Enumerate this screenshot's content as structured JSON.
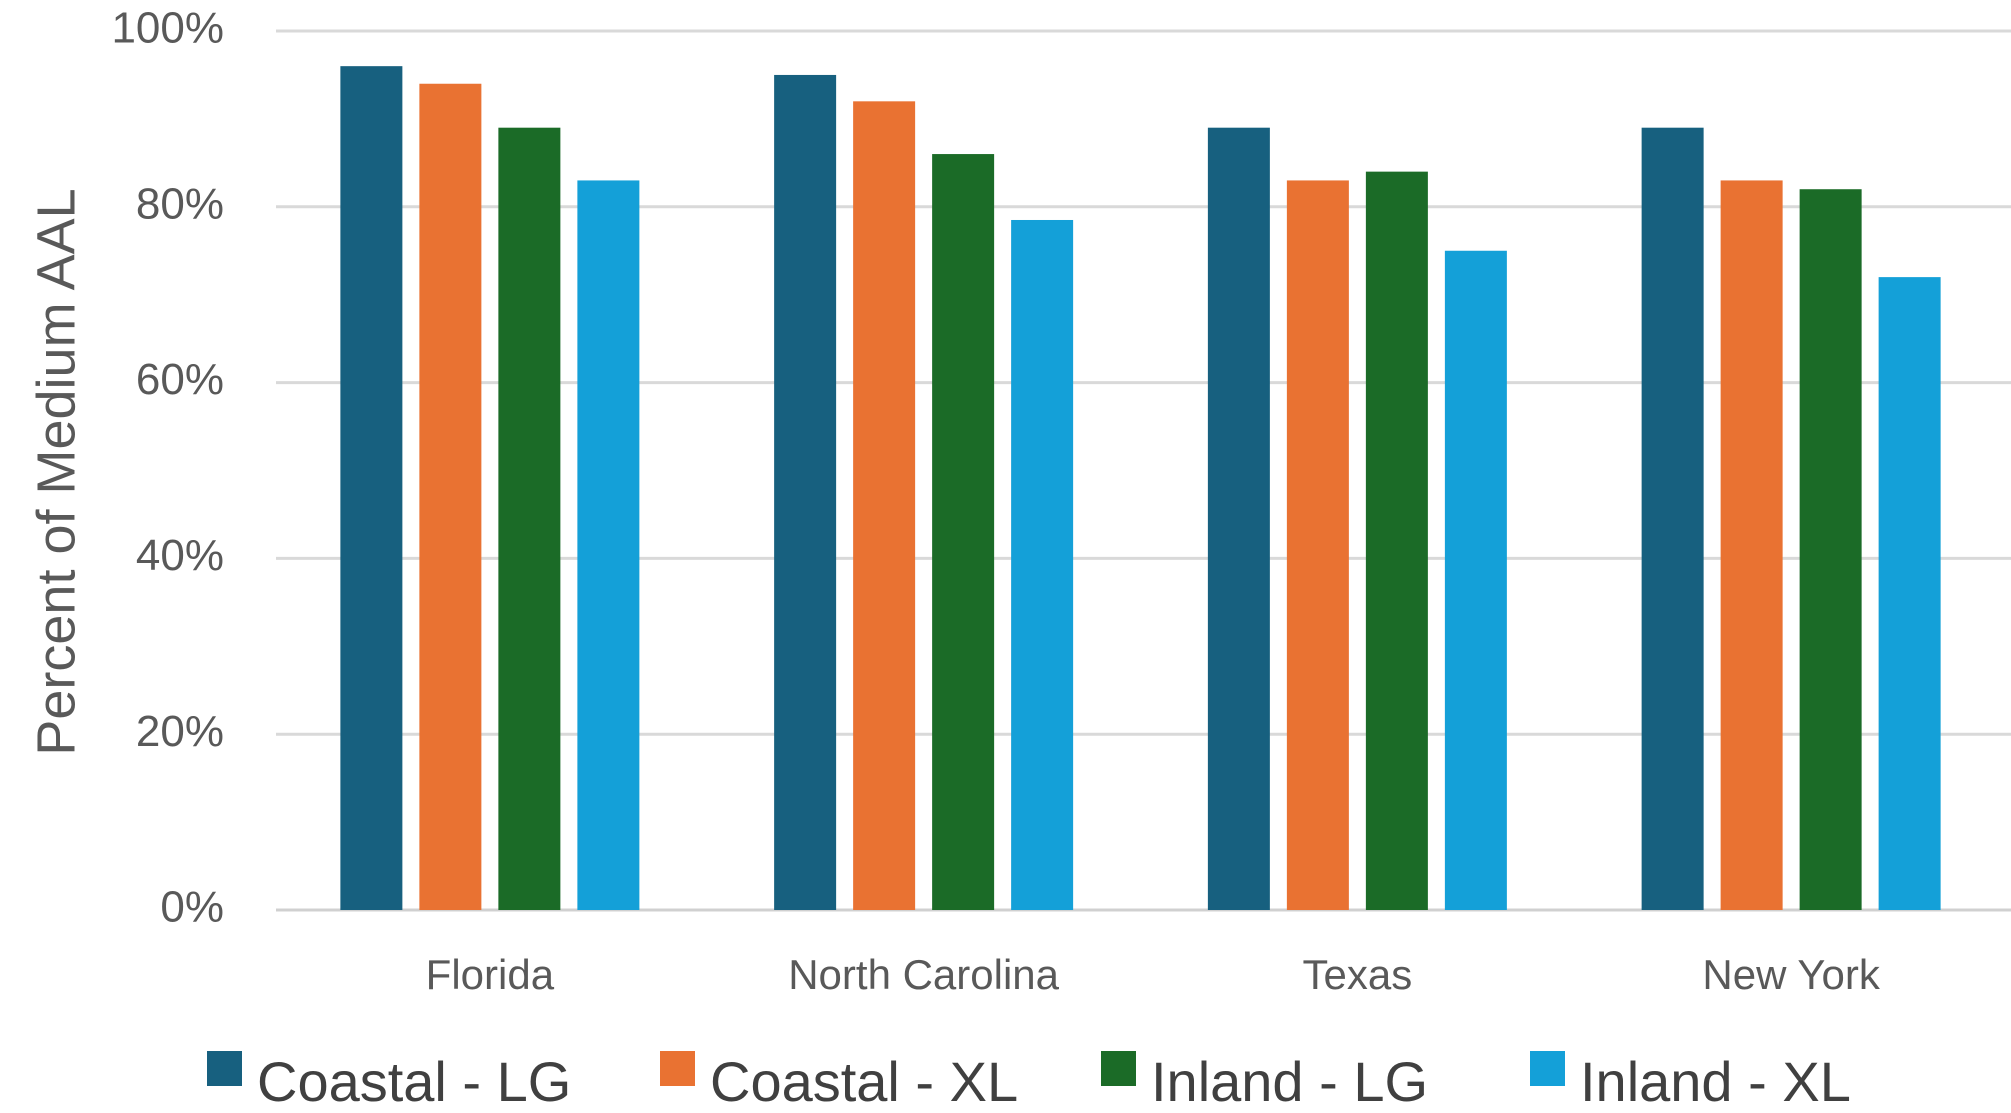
{
  "chart_data": {
    "type": "bar",
    "title": "",
    "xlabel": "",
    "ylabel": "Percent of Medium AAL",
    "ylim": [
      0,
      100
    ],
    "yticks": [
      "0%",
      "20%",
      "40%",
      "60%",
      "80%",
      "100%"
    ],
    "grid": true,
    "legend_position": "bottom",
    "categories": [
      "Florida",
      "North Carolina",
      "Texas",
      "New York"
    ],
    "series": [
      {
        "name": "Coastal - LG",
        "color": "#17607f",
        "values": [
          96,
          95,
          89,
          89
        ]
      },
      {
        "name": "Coastal - XL",
        "color": "#e97232",
        "values": [
          94,
          92,
          83,
          83
        ]
      },
      {
        "name": "Inland - LG",
        "color": "#1b6b27",
        "values": [
          89,
          86,
          84,
          82
        ]
      },
      {
        "name": "Inland - XL",
        "color": "#14a0d8",
        "values": [
          83,
          78.5,
          75,
          72
        ]
      }
    ]
  }
}
